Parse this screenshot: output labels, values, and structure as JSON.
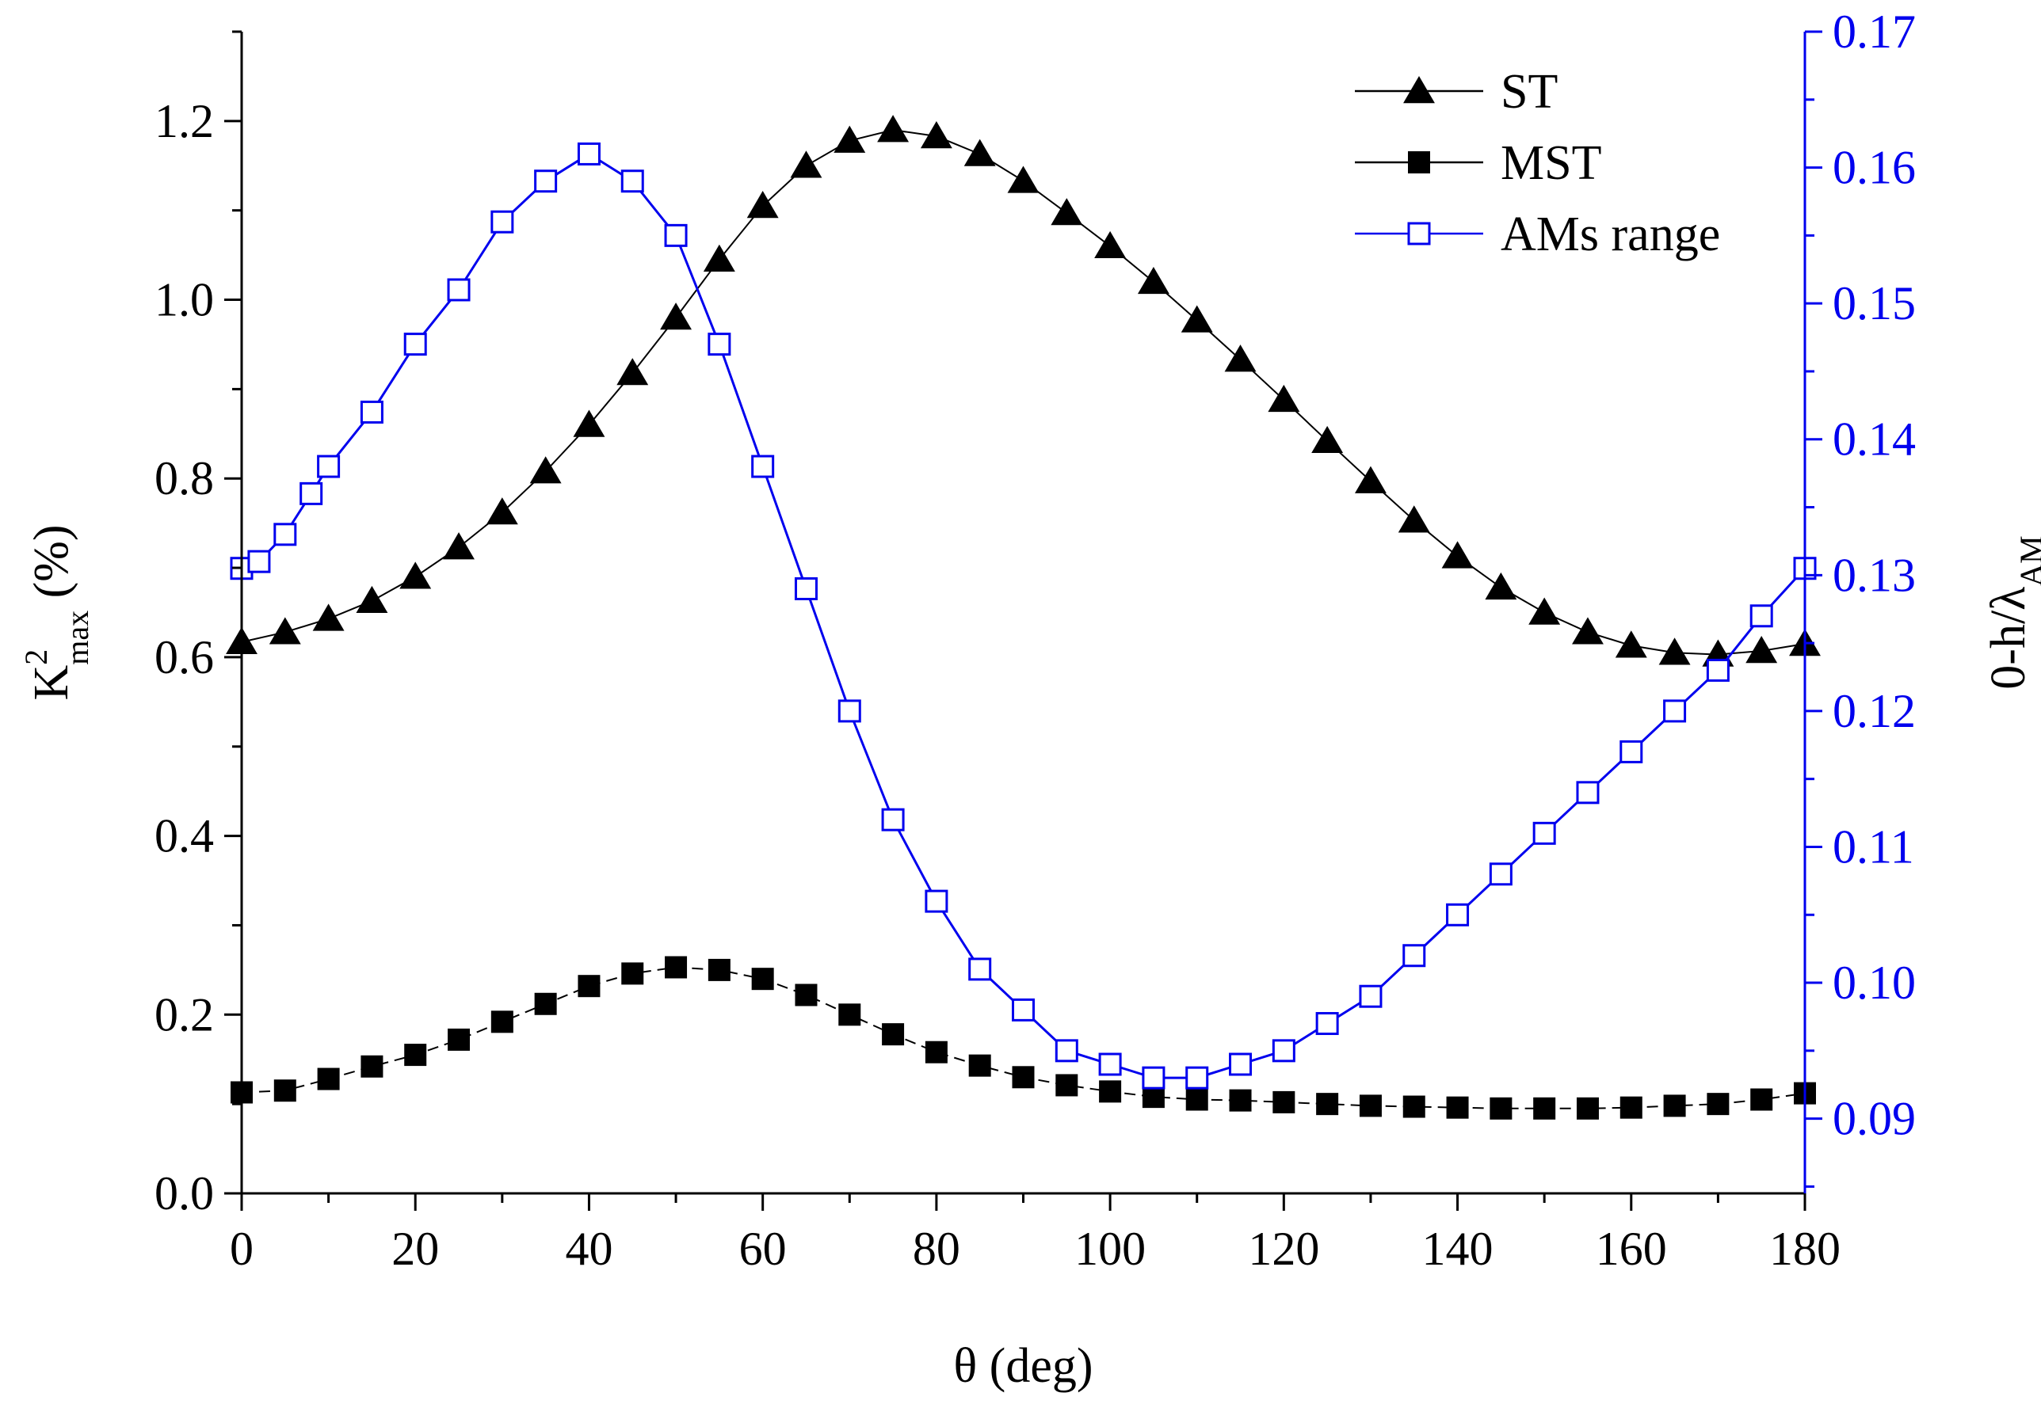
{
  "chart_data": {
    "type": "line",
    "title": "",
    "xlabel": "θ (deg)",
    "ylabel": {
      "base": "K",
      "sup": "2",
      "sub": "max",
      "unit": " (%)"
    },
    "y2label": {
      "base": "0-h/λ",
      "sub": "AM"
    },
    "xlim": [
      0,
      180
    ],
    "ylim": [
      0,
      1.3
    ],
    "y2lim": [
      0.0845,
      0.17
    ],
    "xticks": [
      0,
      20,
      40,
      60,
      80,
      100,
      120,
      140,
      160,
      180
    ],
    "xtick_labels": [
      "0",
      "20",
      "40",
      "60",
      "80",
      "100",
      "120",
      "140",
      "160",
      "180"
    ],
    "yticks": [
      0,
      0.2,
      0.4,
      0.6,
      0.8,
      1.0,
      1.2
    ],
    "ytick_labels": [
      "0.0",
      "0.2",
      "0.4",
      "0.6",
      "0.8",
      "1.0",
      "1.2"
    ],
    "y2ticks": [
      0.09,
      0.1,
      0.11,
      0.12,
      0.13,
      0.14,
      0.15,
      0.16,
      0.17
    ],
    "y2tick_labels": [
      "0.09",
      "0.10",
      "0.11",
      "0.12",
      "0.13",
      "0.14",
      "0.15",
      "0.16",
      "0.17"
    ],
    "grid": false,
    "legend_position": "top-right",
    "colors": {
      "st": "#000000",
      "mst": "#000000",
      "ams": "#0000ee",
      "right_axis": "#0000ee"
    },
    "series": [
      {
        "name": "ST",
        "axis": "left",
        "marker": "triangle",
        "line": "solid",
        "x": [
          0,
          5,
          10,
          15,
          20,
          25,
          30,
          35,
          40,
          45,
          50,
          55,
          60,
          65,
          70,
          75,
          80,
          85,
          90,
          95,
          100,
          105,
          110,
          115,
          120,
          125,
          130,
          135,
          140,
          145,
          150,
          155,
          160,
          165,
          170,
          175,
          180
        ],
        "y": [
          0.617,
          0.628,
          0.643,
          0.663,
          0.69,
          0.723,
          0.762,
          0.808,
          0.86,
          0.918,
          0.98,
          1.045,
          1.105,
          1.15,
          1.178,
          1.19,
          1.183,
          1.163,
          1.133,
          1.097,
          1.06,
          1.02,
          0.977,
          0.933,
          0.888,
          0.842,
          0.797,
          0.753,
          0.713,
          0.678,
          0.65,
          0.628,
          0.613,
          0.605,
          0.603,
          0.607,
          0.615
        ]
      },
      {
        "name": "MST",
        "axis": "left",
        "marker": "filled-square",
        "line": "dashed",
        "x": [
          0,
          5,
          10,
          15,
          20,
          25,
          30,
          35,
          40,
          45,
          50,
          55,
          60,
          65,
          70,
          75,
          80,
          85,
          90,
          95,
          100,
          105,
          110,
          115,
          120,
          125,
          130,
          135,
          140,
          145,
          150,
          155,
          160,
          165,
          170,
          175,
          180
        ],
        "y": [
          0.113,
          0.115,
          0.128,
          0.142,
          0.155,
          0.172,
          0.192,
          0.212,
          0.232,
          0.246,
          0.253,
          0.25,
          0.24,
          0.222,
          0.2,
          0.178,
          0.158,
          0.143,
          0.13,
          0.121,
          0.114,
          0.108,
          0.105,
          0.104,
          0.102,
          0.1,
          0.098,
          0.097,
          0.096,
          0.095,
          0.095,
          0.095,
          0.096,
          0.098,
          0.1,
          0.105,
          0.112
        ]
      },
      {
        "name": "AMs range",
        "axis": "right",
        "marker": "open-square",
        "line": "solid",
        "x": [
          0,
          2,
          5,
          8,
          10,
          15,
          20,
          25,
          30,
          35,
          40,
          45,
          50,
          55,
          60,
          65,
          70,
          75,
          80,
          85,
          90,
          95,
          100,
          105,
          110,
          115,
          120,
          125,
          130,
          135,
          140,
          145,
          150,
          155,
          160,
          165,
          170,
          175,
          180
        ],
        "y": [
          0.1305,
          0.131,
          0.133,
          0.136,
          0.138,
          0.142,
          0.147,
          0.151,
          0.156,
          0.159,
          0.161,
          0.159,
          0.155,
          0.147,
          0.138,
          0.129,
          0.12,
          0.112,
          0.106,
          0.101,
          0.098,
          0.095,
          0.094,
          0.093,
          0.093,
          0.094,
          0.095,
          0.097,
          0.099,
          0.102,
          0.105,
          0.108,
          0.111,
          0.114,
          0.117,
          0.12,
          0.123,
          0.127,
          0.1305
        ]
      }
    ]
  }
}
